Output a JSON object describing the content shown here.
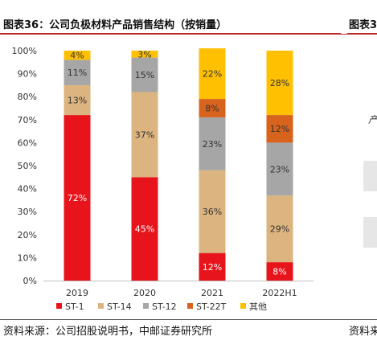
{
  "header": {
    "title": "图表36：公司负极材料产品销售结构（按销量）",
    "side_title": "图表3"
  },
  "footer": {
    "source": "资料来源：公司招股说明书，中邮证券研究所",
    "side_source": "资料来"
  },
  "side_fragment": {
    "glyph": "产"
  },
  "colors": {
    "ST-1": "#e8141c",
    "ST-14": "#dcb47f",
    "ST-12": "#a6a6a6",
    "ST-22T": "#d8631d",
    "其他": "#fec000",
    "accent_rule": "#b8282e"
  },
  "chart_data": {
    "type": "bar",
    "stacked": true,
    "categories": [
      "2019",
      "2020",
      "2021",
      "2022H1"
    ],
    "series": [
      {
        "name": "ST-1",
        "values": [
          72,
          45,
          12,
          8
        ]
      },
      {
        "name": "ST-14",
        "values": [
          13,
          37,
          36,
          29
        ]
      },
      {
        "name": "ST-12",
        "values": [
          11,
          15,
          23,
          23
        ]
      },
      {
        "name": "ST-22T",
        "values": [
          0,
          0,
          8,
          12
        ]
      },
      {
        "name": "其他",
        "values": [
          4,
          3,
          22,
          28
        ]
      }
    ],
    "ylim": [
      0,
      100
    ],
    "yticks": [
      "0%",
      "10%",
      "20%",
      "30%",
      "40%",
      "50%",
      "60%",
      "70%",
      "80%",
      "90%",
      "100%"
    ],
    "legend_position": "bottom",
    "grid": false
  }
}
